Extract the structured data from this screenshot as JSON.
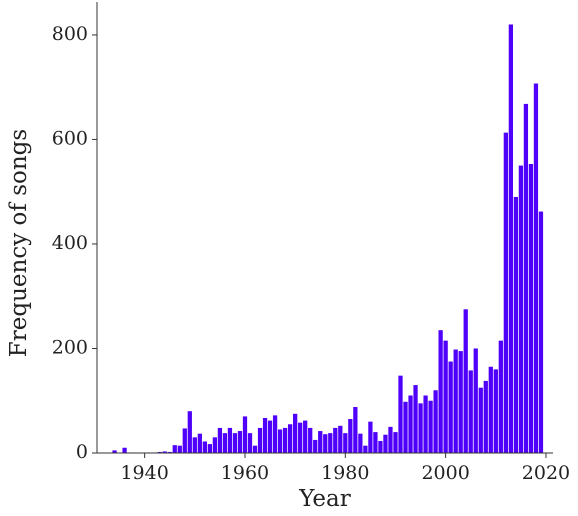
{
  "chart_data": {
    "type": "bar",
    "x_label": "Year",
    "y_label": "Frequency of songs",
    "color": "#4f00fa",
    "xlim": [
      1930.5,
      2021.4
    ],
    "ylim": [
      0,
      863
    ],
    "xticks": [
      1940,
      1960,
      1980,
      2000,
      2020
    ],
    "yticks": [
      0,
      200,
      400,
      600,
      800
    ],
    "x": [
      1934,
      1935,
      1936,
      1937,
      1938,
      1939,
      1940,
      1941,
      1942,
      1943,
      1944,
      1945,
      1946,
      1947,
      1948,
      1949,
      1950,
      1951,
      1952,
      1953,
      1954,
      1955,
      1956,
      1957,
      1958,
      1959,
      1960,
      1961,
      1962,
      1963,
      1964,
      1965,
      1966,
      1967,
      1968,
      1969,
      1970,
      1971,
      1972,
      1973,
      1974,
      1975,
      1976,
      1977,
      1978,
      1979,
      1980,
      1981,
      1982,
      1983,
      1984,
      1985,
      1986,
      1987,
      1988,
      1989,
      1990,
      1991,
      1992,
      1993,
      1994,
      1995,
      1996,
      1997,
      1998,
      1999,
      2000,
      2001,
      2002,
      2003,
      2004,
      2005,
      2006,
      2007,
      2008,
      2009,
      2010,
      2011,
      2012,
      2013,
      2014,
      2015,
      2016,
      2017,
      2018,
      2019
    ],
    "values": [
      5,
      0,
      10,
      1,
      1,
      0,
      1,
      0,
      1,
      2,
      3,
      2,
      15,
      14,
      47,
      80,
      30,
      37,
      22,
      17,
      30,
      48,
      38,
      48,
      38,
      42,
      70,
      38,
      14,
      48,
      67,
      62,
      72,
      45,
      48,
      55,
      75,
      58,
      62,
      48,
      25,
      42,
      36,
      38,
      48,
      52,
      38,
      65,
      88,
      37,
      14,
      60,
      40,
      23,
      35,
      50,
      40,
      148,
      98,
      110,
      130,
      95,
      110,
      100,
      120,
      235,
      215,
      175,
      198,
      195,
      275,
      158,
      200,
      125,
      138,
      165,
      160,
      215,
      613,
      820,
      490,
      550,
      668,
      553,
      707,
      462
    ]
  }
}
